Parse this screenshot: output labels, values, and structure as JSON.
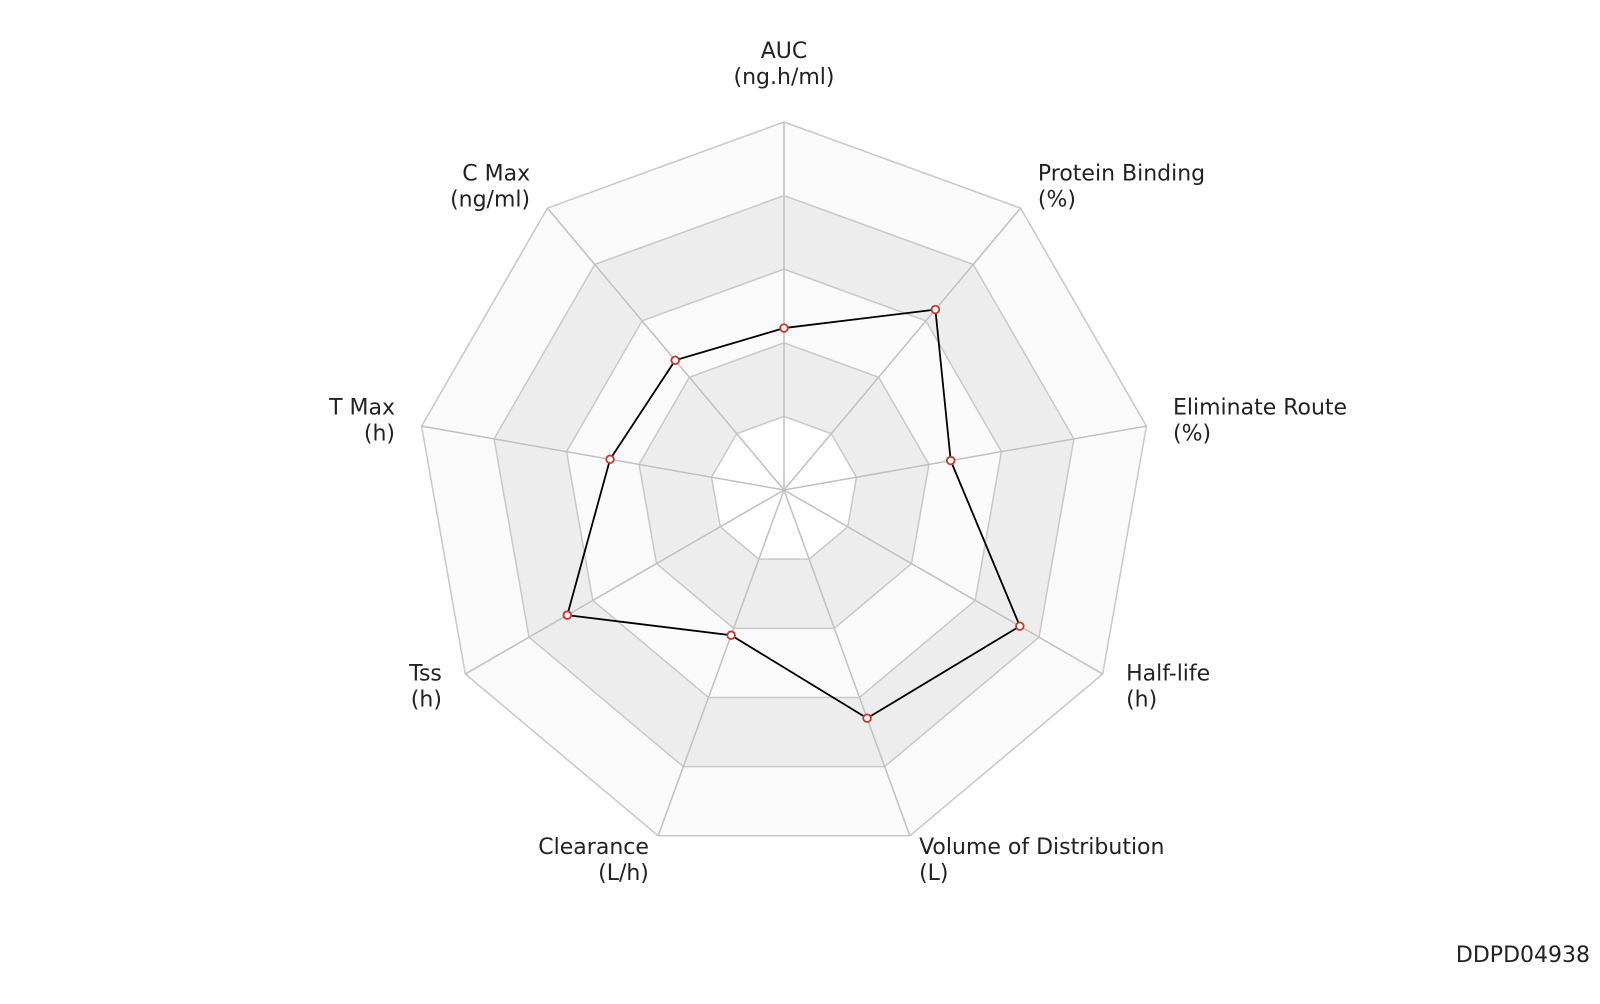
{
  "chart_data": {
    "type": "radar",
    "categories": [
      "AUC",
      "Protein Binding",
      "Eliminate Route",
      "Half-life",
      "Volume of Distribution",
      "Clearance",
      "Tss",
      "T Max",
      "C Max"
    ],
    "units": [
      "(ng.h/ml)",
      "(%)",
      "(%)",
      "(h)",
      "(L)",
      "(L/h)",
      "(h)",
      "(h)",
      "(ng/ml)"
    ],
    "values": [
      2.2,
      3.2,
      2.3,
      3.7,
      3.3,
      2.1,
      3.4,
      2.4,
      2.3
    ],
    "color": "#000000",
    "marker_color": "#c0392b",
    "rlim": [
      0,
      5
    ],
    "rticks": [
      1,
      2,
      3,
      4,
      5
    ],
    "grid": true
  },
  "footer": "DDPD04938"
}
